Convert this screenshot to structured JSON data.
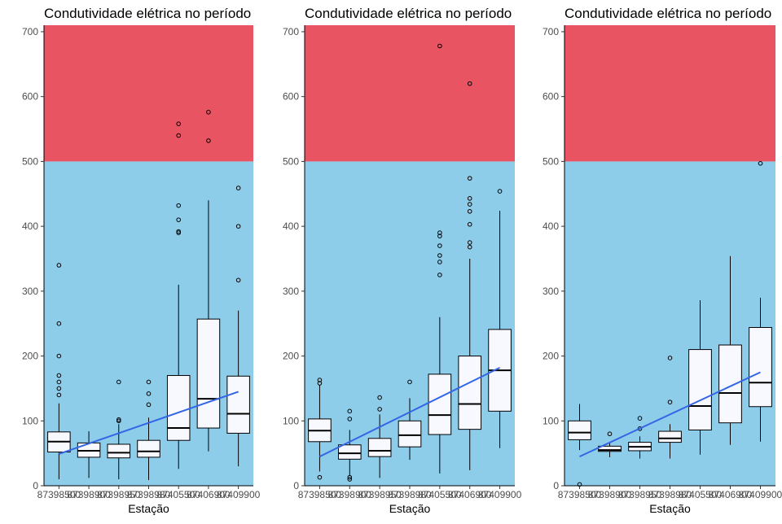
{
  "figure": {
    "colors": {
      "danger_zone": "#E85462",
      "safe_zone": "#8ECDEA",
      "box_fill": "#F8F8FF",
      "trend_line": "#3366E6",
      "outline": "#000000"
    }
  },
  "chart_data": [
    {
      "type": "boxplot",
      "title": "Condutividade elétrica no período",
      "xlabel": "Estação",
      "ylabel": "",
      "ylim": [
        0,
        710
      ],
      "yticks": [
        0,
        100,
        200,
        300,
        400,
        500,
        600,
        700
      ],
      "categories": [
        "87398500",
        "87398900",
        "87398950",
        "87398980",
        "87405500",
        "87406900",
        "87409900"
      ],
      "bands": [
        {
          "from": 0,
          "to": 500,
          "color": "#8ECDEA"
        },
        {
          "from": 500,
          "to": 710,
          "color": "#E85462"
        }
      ],
      "boxes": [
        {
          "category": "87398500",
          "whisker_low": 10,
          "q1": 52,
          "median": 68,
          "q3": 83,
          "whisker_high": 127,
          "outliers": [
            140,
            150,
            160,
            170,
            200,
            250,
            340
          ]
        },
        {
          "category": "87398900",
          "whisker_low": 12,
          "q1": 44,
          "median": 54,
          "q3": 66,
          "whisker_high": 84,
          "outliers": []
        },
        {
          "category": "87398950",
          "whisker_low": 10,
          "q1": 43,
          "median": 51,
          "q3": 64,
          "whisker_high": 95,
          "outliers": [
            100,
            102,
            160
          ]
        },
        {
          "category": "87398980",
          "whisker_low": 9,
          "q1": 44,
          "median": 53,
          "q3": 70,
          "whisker_high": 105,
          "outliers": [
            125,
            142,
            160
          ]
        },
        {
          "category": "87405500",
          "whisker_low": 26,
          "q1": 70,
          "median": 89,
          "q3": 170,
          "whisker_high": 310,
          "outliers": [
            390,
            392,
            410,
            432,
            540,
            558
          ]
        },
        {
          "category": "87406900",
          "whisker_low": 53,
          "q1": 89,
          "median": 134,
          "q3": 257,
          "whisker_high": 440,
          "outliers": [
            532,
            576
          ]
        },
        {
          "category": "87409900",
          "whisker_low": 30,
          "q1": 81,
          "median": 111,
          "q3": 169,
          "whisker_high": 270,
          "outliers": [
            317,
            400,
            459
          ]
        }
      ],
      "trend": {
        "start": 49,
        "end": 145
      }
    },
    {
      "type": "boxplot",
      "title": "Condutividade elétrica no período",
      "xlabel": "Estação",
      "ylabel": "",
      "ylim": [
        0,
        710
      ],
      "yticks": [
        0,
        100,
        200,
        300,
        400,
        500,
        600,
        700
      ],
      "categories": [
        "87398500",
        "87398900",
        "87398950",
        "87398980",
        "87405500",
        "87406900",
        "87409900"
      ],
      "bands": [
        {
          "from": 0,
          "to": 500,
          "color": "#8ECDEA"
        },
        {
          "from": 500,
          "to": 710,
          "color": "#E85462"
        }
      ],
      "boxes": [
        {
          "category": "87398500",
          "whisker_low": 22,
          "q1": 68,
          "median": 85,
          "q3": 103,
          "whisker_high": 155,
          "outliers": [
            13,
            158,
            163
          ]
        },
        {
          "category": "87398900",
          "whisker_low": 15,
          "q1": 41,
          "median": 50,
          "q3": 63,
          "whisker_high": 86,
          "outliers": [
            10,
            13,
            103,
            115
          ]
        },
        {
          "category": "87398950",
          "whisker_low": 12,
          "q1": 45,
          "median": 54,
          "q3": 73,
          "whisker_high": 110,
          "outliers": [
            118,
            136
          ]
        },
        {
          "category": "87398980",
          "whisker_low": 40,
          "q1": 60,
          "median": 78,
          "q3": 100,
          "whisker_high": 135,
          "outliers": [
            160
          ]
        },
        {
          "category": "87405500",
          "whisker_low": 19,
          "q1": 79,
          "median": 109,
          "q3": 172,
          "whisker_high": 260,
          "outliers": [
            325,
            345,
            355,
            370,
            385,
            390,
            678
          ]
        },
        {
          "category": "87406900",
          "whisker_low": 24,
          "q1": 87,
          "median": 126,
          "q3": 200,
          "whisker_high": 350,
          "outliers": [
            368,
            375,
            403,
            423,
            434,
            443,
            474,
            620
          ]
        },
        {
          "category": "87409900",
          "whisker_low": 58,
          "q1": 115,
          "median": 178,
          "q3": 241,
          "whisker_high": 424,
          "outliers": [
            454
          ]
        }
      ],
      "trend": {
        "start": 45,
        "end": 182
      }
    },
    {
      "type": "boxplot",
      "title": "Condutividade elétrica no período",
      "xlabel": "Estação",
      "ylabel": "",
      "ylim": [
        0,
        710
      ],
      "yticks": [
        0,
        100,
        200,
        300,
        400,
        500,
        600,
        700
      ],
      "categories": [
        "87398500",
        "87398900",
        "87398950",
        "87398980",
        "87405500",
        "87406900",
        "87409900"
      ],
      "bands": [
        {
          "from": 0,
          "to": 500,
          "color": "#8ECDEA"
        },
        {
          "from": 500,
          "to": 710,
          "color": "#E85462"
        }
      ],
      "boxes": [
        {
          "category": "87398500",
          "whisker_low": 55,
          "q1": 71,
          "median": 82,
          "q3": 100,
          "whisker_high": 126,
          "outliers": [
            2
          ]
        },
        {
          "category": "87398900",
          "whisker_low": 44,
          "q1": 53,
          "median": 55,
          "q3": 61,
          "whisker_high": 66,
          "outliers": [
            80
          ]
        },
        {
          "category": "87398950",
          "whisker_low": 42,
          "q1": 54,
          "median": 60,
          "q3": 67,
          "whisker_high": 76,
          "outliers": [
            88,
            104
          ]
        },
        {
          "category": "87398980",
          "whisker_low": 42,
          "q1": 67,
          "median": 73,
          "q3": 84,
          "whisker_high": 95,
          "outliers": [
            129,
            197
          ]
        },
        {
          "category": "87405500",
          "whisker_low": 48,
          "q1": 86,
          "median": 123,
          "q3": 210,
          "whisker_high": 286,
          "outliers": []
        },
        {
          "category": "87406900",
          "whisker_low": 63,
          "q1": 97,
          "median": 143,
          "q3": 217,
          "whisker_high": 354,
          "outliers": []
        },
        {
          "category": "87409900",
          "whisker_low": 68,
          "q1": 122,
          "median": 159,
          "q3": 244,
          "whisker_high": 290,
          "outliers": [
            497
          ]
        }
      ],
      "trend": {
        "start": 45,
        "end": 175
      }
    }
  ]
}
